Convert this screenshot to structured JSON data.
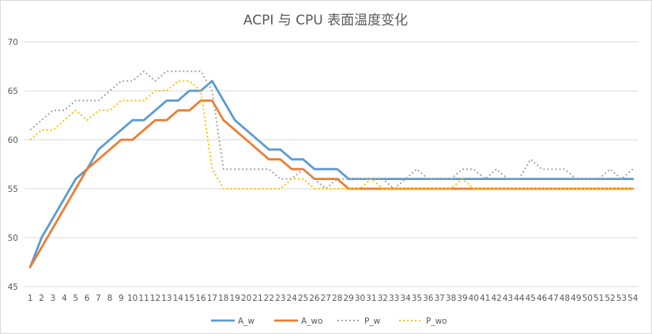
{
  "chart_data": {
    "type": "line",
    "title": "ACPI 与 CPU 表面温度变化",
    "xlabel": "",
    "ylabel": "",
    "ylim": [
      45,
      70
    ],
    "yticks": [
      45,
      50,
      55,
      60,
      65,
      70
    ],
    "grid": true,
    "legend_position": "bottom",
    "categories": [
      "1",
      "2",
      "3",
      "4",
      "5",
      "6",
      "7",
      "8",
      "9",
      "10",
      "11",
      "12",
      "13",
      "14",
      "15",
      "16",
      "17",
      "18",
      "19",
      "20",
      "21",
      "22",
      "23",
      "24",
      "25",
      "26",
      "27",
      "28",
      "29",
      "30",
      "31",
      "32",
      "33",
      "34",
      "35",
      "36",
      "37",
      "38",
      "39",
      "40",
      "41",
      "42",
      "43",
      "44",
      "45",
      "46",
      "47",
      "48",
      "49",
      "50",
      "51",
      "52",
      "53",
      "54"
    ],
    "series": [
      {
        "name": "A_w",
        "color": "#5b9bd5",
        "style": "solid",
        "values": [
          47,
          50,
          52,
          54,
          56,
          57,
          59,
          60,
          61,
          62,
          62,
          63,
          64,
          64,
          65,
          65,
          66,
          64,
          62,
          61,
          60,
          59,
          59,
          58,
          58,
          57,
          57,
          57,
          56,
          56,
          56,
          56,
          56,
          56,
          56,
          56,
          56,
          56,
          56,
          56,
          56,
          56,
          56,
          56,
          56,
          56,
          56,
          56,
          56,
          56,
          56,
          56,
          56,
          56
        ]
      },
      {
        "name": "A_wo",
        "color": "#ed7d31",
        "style": "solid",
        "values": [
          47,
          49,
          51,
          53,
          55,
          57,
          58,
          59,
          60,
          60,
          61,
          62,
          62,
          63,
          63,
          64,
          64,
          62,
          61,
          60,
          59,
          58,
          58,
          57,
          57,
          56,
          56,
          56,
          55,
          55,
          55,
          55,
          55,
          55,
          55,
          55,
          55,
          55,
          55,
          55,
          55,
          55,
          55,
          55,
          55,
          55,
          55,
          55,
          55,
          55,
          55,
          55,
          55,
          55
        ]
      },
      {
        "name": "P_w",
        "color": "#a5a5a5",
        "style": "dotted",
        "values": [
          61,
          62,
          63,
          63,
          64,
          64,
          64,
          65,
          66,
          66,
          67,
          66,
          67,
          67,
          67,
          67,
          65,
          57,
          57,
          57,
          57,
          57,
          56,
          56,
          57,
          56,
          55,
          56,
          56,
          56,
          56,
          56,
          55,
          56,
          57,
          56,
          56,
          56,
          57,
          57,
          56,
          57,
          56,
          56,
          58,
          57,
          57,
          57,
          56,
          56,
          56,
          57,
          56,
          57
        ]
      },
      {
        "name": "P_wo",
        "color": "#ffc000",
        "style": "dotted",
        "values": [
          60,
          61,
          61,
          62,
          63,
          62,
          63,
          63,
          64,
          64,
          64,
          65,
          65,
          66,
          66,
          65,
          57,
          55,
          55,
          55,
          55,
          55,
          55,
          56,
          56,
          55,
          55,
          55,
          55,
          55,
          56,
          55,
          55,
          55,
          55,
          55,
          55,
          55,
          56,
          55,
          55,
          55,
          55,
          55,
          55,
          55,
          55,
          55,
          55,
          55,
          55,
          55,
          55,
          55
        ]
      }
    ]
  }
}
